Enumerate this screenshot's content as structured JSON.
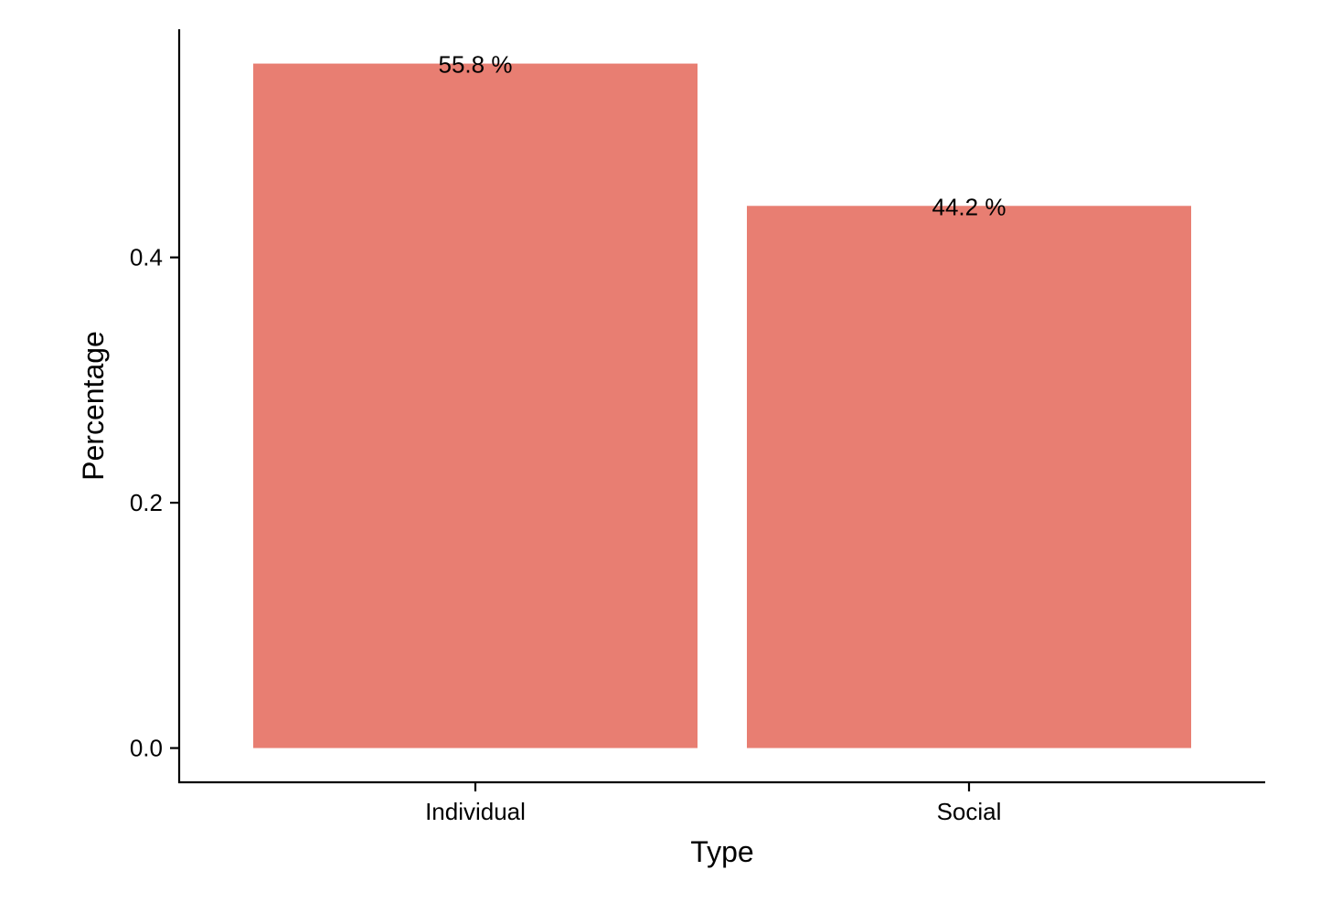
{
  "chart_data": {
    "type": "bar",
    "categories": [
      "Individual",
      "Social"
    ],
    "values": [
      0.558,
      0.442
    ],
    "data_labels": [
      "55.8 %",
      "44.2 %"
    ],
    "xlabel": "Type",
    "ylabel": "Percentage",
    "ylim": [
      -0.0279,
      0.586
    ],
    "yticks": [
      0.0,
      0.2,
      0.4
    ],
    "ytick_labels": [
      "0.0",
      "0.2",
      "0.4"
    ],
    "bar_color": "#E87E72",
    "grid": false,
    "legend": "none"
  }
}
